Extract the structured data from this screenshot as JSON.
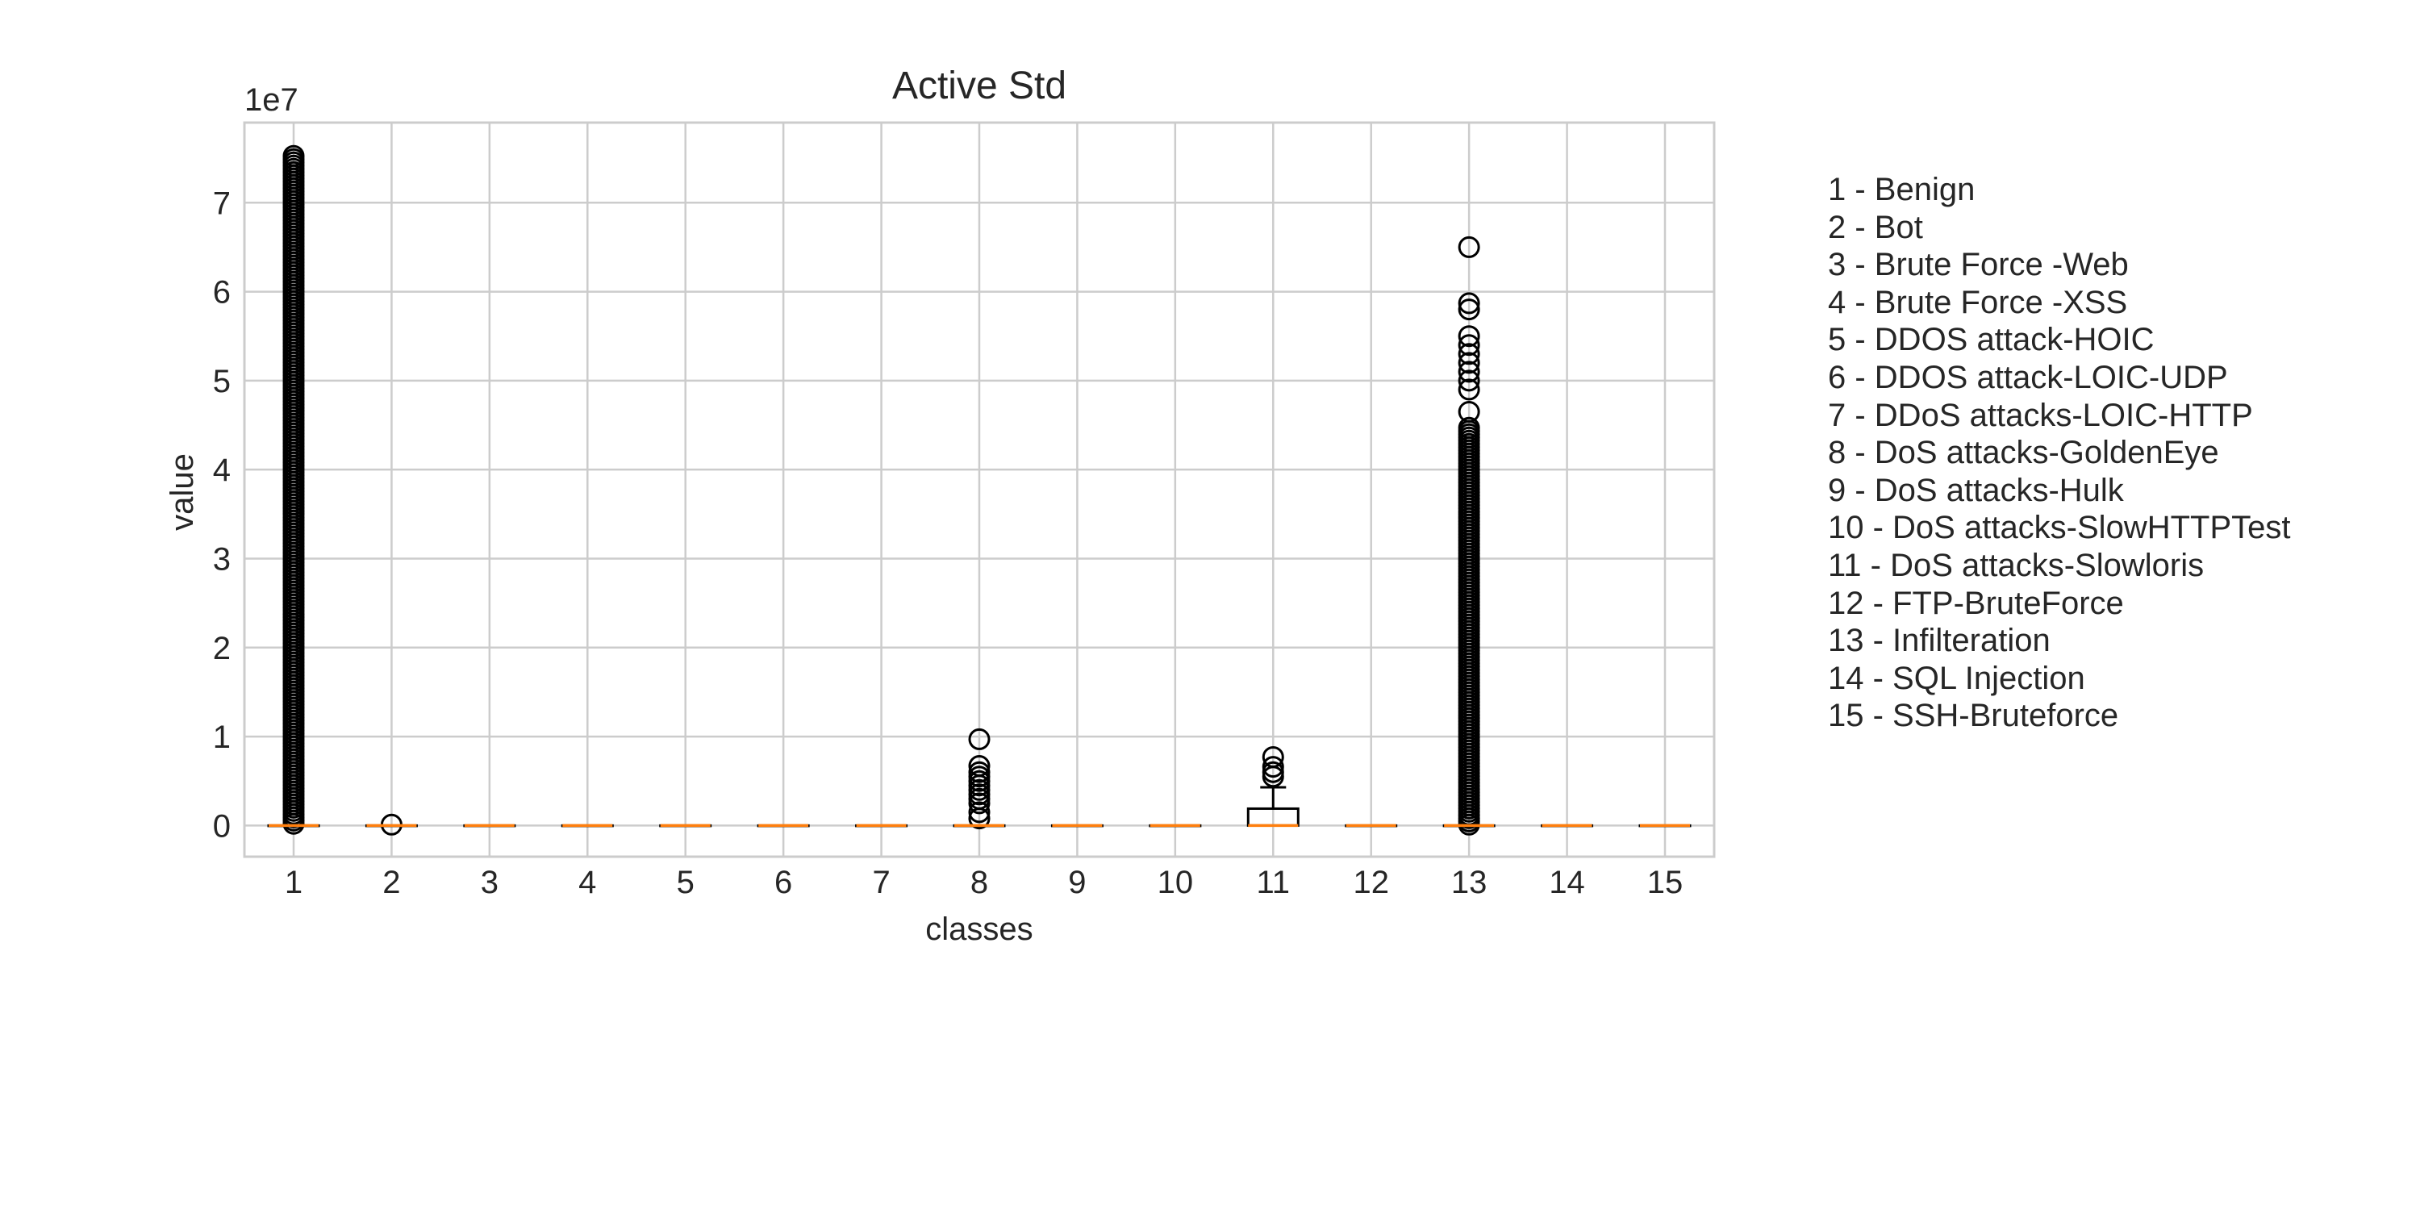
{
  "chart_data": {
    "type": "box",
    "title": "Active Std",
    "xlabel": "classes",
    "ylabel": "value",
    "y_offset_label": "1e7",
    "ylim": [
      -0.35,
      7.9
    ],
    "y_ticks": [
      0,
      1,
      2,
      3,
      4,
      5,
      6,
      7
    ],
    "grid": true,
    "categories": [
      "1",
      "2",
      "3",
      "4",
      "5",
      "6",
      "7",
      "8",
      "9",
      "10",
      "11",
      "12",
      "13",
      "14",
      "15"
    ],
    "boxes": [
      {
        "category": "1",
        "median": 0,
        "q1": 0,
        "q3": 0,
        "whisker_low": 0,
        "whisker_high": 0,
        "outliers_range": [
          0.02,
          7.55
        ]
      },
      {
        "category": "2",
        "median": 0,
        "q1": 0,
        "q3": 0,
        "whisker_low": 0,
        "whisker_high": 0,
        "outliers": [
          0.01
        ]
      },
      {
        "category": "3",
        "median": 0,
        "q1": 0,
        "q3": 0,
        "whisker_low": 0,
        "whisker_high": 0,
        "outliers": []
      },
      {
        "category": "4",
        "median": 0,
        "q1": 0,
        "q3": 0,
        "whisker_low": 0,
        "whisker_high": 0,
        "outliers": []
      },
      {
        "category": "5",
        "median": 0,
        "q1": 0,
        "q3": 0,
        "whisker_low": 0,
        "whisker_high": 0,
        "outliers": []
      },
      {
        "category": "6",
        "median": 0,
        "q1": 0,
        "q3": 0,
        "whisker_low": 0,
        "whisker_high": 0,
        "outliers": []
      },
      {
        "category": "7",
        "median": 0,
        "q1": 0,
        "q3": 0,
        "whisker_low": 0,
        "whisker_high": 0,
        "outliers": []
      },
      {
        "category": "8",
        "median": 0,
        "q1": 0,
        "q3": 0,
        "whisker_low": 0,
        "whisker_high": 0,
        "outliers": [
          0.97,
          0.67,
          0.6,
          0.55,
          0.5,
          0.45,
          0.4,
          0.35,
          0.3,
          0.25,
          0.15,
          0.08
        ]
      },
      {
        "category": "9",
        "median": 0,
        "q1": 0,
        "q3": 0,
        "whisker_low": 0,
        "whisker_high": 0,
        "outliers": []
      },
      {
        "category": "10",
        "median": 0,
        "q1": 0,
        "q3": 0,
        "whisker_low": 0,
        "whisker_high": 0,
        "outliers": []
      },
      {
        "category": "11",
        "median": 0,
        "q1": 0,
        "q3": 0.19,
        "whisker_low": 0,
        "whisker_high": 0.43,
        "outliers": [
          0.77,
          0.66,
          0.6,
          0.55
        ]
      },
      {
        "category": "12",
        "median": 0,
        "q1": 0,
        "q3": 0,
        "whisker_low": 0,
        "whisker_high": 0,
        "outliers": []
      },
      {
        "category": "13",
        "median": 0,
        "q1": 0,
        "q3": 0,
        "whisker_low": 0,
        "whisker_high": 0,
        "outliers_range": [
          0.01,
          4.5
        ],
        "outliers": [
          6.5,
          5.87,
          5.8,
          5.5,
          5.4,
          5.3,
          5.2,
          5.1,
          5.0,
          4.9,
          4.65
        ]
      },
      {
        "category": "14",
        "median": 0,
        "q1": 0,
        "q3": 0,
        "whisker_low": 0,
        "whisker_high": 0,
        "outliers": []
      },
      {
        "category": "15",
        "median": 0,
        "q1": 0,
        "q3": 0,
        "whisker_low": 0,
        "whisker_high": 0,
        "outliers": []
      }
    ],
    "colors": {
      "median": "#ff7f0e",
      "box": "#000000",
      "grid": "#cccccc",
      "spine": "#cccccc"
    }
  },
  "legend": {
    "entries": [
      "1 - Benign",
      "2 - Bot",
      "3 - Brute Force -Web",
      "4 - Brute Force -XSS",
      "5 - DDOS attack-HOIC",
      "6 - DDOS attack-LOIC-UDP",
      "7 - DDoS attacks-LOIC-HTTP",
      "8 - DoS attacks-GoldenEye",
      "9 - DoS attacks-Hulk",
      "10 - DoS attacks-SlowHTTPTest",
      "11 - DoS attacks-Slowloris",
      "12 - FTP-BruteForce",
      "13 - Infilteration",
      "14 - SQL Injection",
      "15 - SSH-Bruteforce"
    ]
  }
}
